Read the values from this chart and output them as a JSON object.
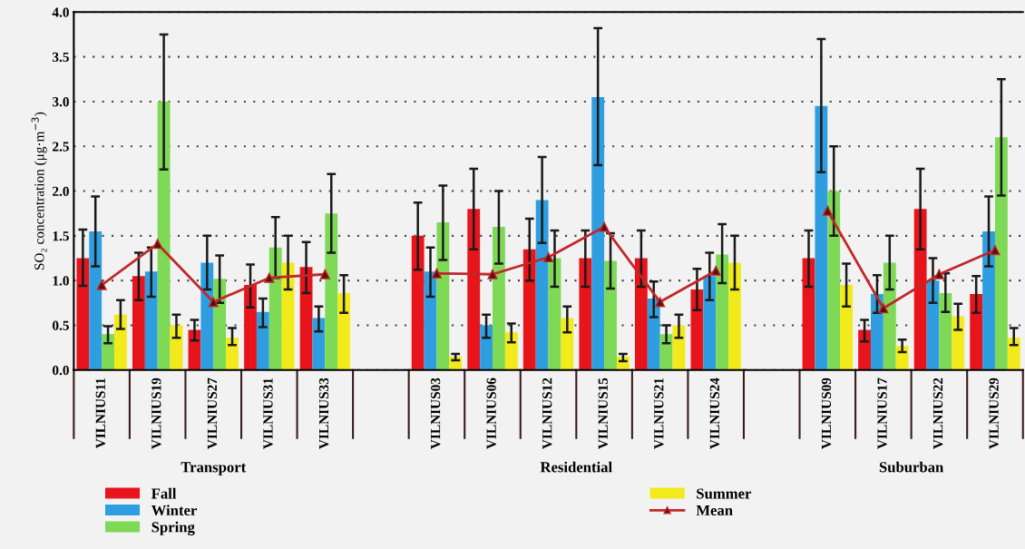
{
  "chart_data": {
    "type": "bar",
    "ylabel": "SO₂ concentration (μg·m$^{−3}$)",
    "categories": [
      "VILNIUS11",
      "VILNIUS19",
      "VILNIUS27",
      "VILNIUS31",
      "VILNIUS33",
      null,
      "VILNIUS03",
      "VILNIUS06",
      "VILNIUS12",
      "VILNIUS15",
      "VILNIUS21",
      "VILNIUS24",
      null,
      "VILNIUS09",
      "VILNIUS17",
      "VILNIUS22",
      "VILNIUS29"
    ],
    "annotations": [
      "Transport",
      "Residential",
      "Suburban"
    ],
    "series": [
      {
        "name": "Fall",
        "color": "#e8141b",
        "values": [
          1.25,
          1.05,
          0.45,
          0.95,
          1.15,
          null,
          1.5,
          1.8,
          1.35,
          1.25,
          1.25,
          0.9,
          null,
          1.25,
          0.45,
          1.8,
          0.85
        ],
        "errors": [
          [
            0.94,
            1.57
          ],
          [
            0.78,
            1.31
          ],
          [
            0.33,
            0.56
          ],
          [
            0.7,
            1.18
          ],
          [
            0.86,
            1.43
          ],
          null,
          [
            1.12,
            1.87
          ],
          [
            1.35,
            2.25
          ],
          [
            1.0,
            1.69
          ],
          [
            0.93,
            1.56
          ],
          [
            0.93,
            1.56
          ],
          [
            0.67,
            1.13
          ],
          null,
          [
            0.93,
            1.56
          ],
          [
            0.32,
            0.56
          ],
          [
            1.35,
            2.25
          ],
          [
            0.64,
            1.05
          ]
        ]
      },
      {
        "name": "Winter",
        "color": "#2f9ee0",
        "values": [
          1.55,
          1.1,
          1.2,
          0.65,
          0.58,
          null,
          1.1,
          0.5,
          1.9,
          3.05,
          0.8,
          1.05,
          null,
          2.95,
          0.85,
          1.0,
          1.55
        ],
        "errors": [
          [
            1.16,
            1.94
          ],
          [
            0.82,
            1.37
          ],
          [
            0.9,
            1.5
          ],
          [
            0.48,
            0.8
          ],
          [
            0.43,
            0.71
          ],
          null,
          [
            0.82,
            1.37
          ],
          [
            0.36,
            0.62
          ],
          [
            1.42,
            2.38
          ],
          [
            2.29,
            3.82
          ],
          [
            0.59,
            0.99
          ],
          [
            0.78,
            1.31
          ],
          null,
          [
            2.21,
            3.7
          ],
          [
            0.64,
            1.06
          ],
          [
            0.75,
            1.25
          ],
          [
            1.16,
            1.94
          ]
        ]
      },
      {
        "name": "Spring",
        "color": "#7ed957",
        "values": [
          0.4,
          3.0,
          1.02,
          1.37,
          1.75,
          null,
          1.65,
          1.6,
          1.25,
          1.22,
          0.4,
          1.29,
          null,
          2.0,
          1.2,
          0.86,
          2.6
        ],
        "errors": [
          [
            0.3,
            0.49
          ],
          [
            2.24,
            3.75
          ],
          [
            0.75,
            1.28
          ],
          [
            1.03,
            1.71
          ],
          [
            1.31,
            2.19
          ],
          null,
          [
            1.23,
            2.06
          ],
          [
            1.19,
            2.0
          ],
          [
            0.93,
            1.56
          ],
          [
            0.91,
            1.53
          ],
          [
            0.3,
            0.5
          ],
          [
            0.97,
            1.63
          ],
          null,
          [
            1.5,
            2.5
          ],
          [
            0.9,
            1.5
          ],
          [
            0.65,
            1.08
          ],
          [
            1.95,
            3.25
          ]
        ]
      },
      {
        "name": "Summer",
        "color": "#f2ea1a",
        "values": [
          0.62,
          0.5,
          0.36,
          1.2,
          0.86,
          null,
          0.15,
          0.42,
          0.58,
          0.15,
          0.5,
          1.2,
          null,
          0.95,
          0.27,
          0.6,
          0.36
        ],
        "errors": [
          [
            0.46,
            0.78
          ],
          [
            0.36,
            0.62
          ],
          [
            0.28,
            0.47
          ],
          [
            0.9,
            1.5
          ],
          [
            0.64,
            1.06
          ],
          null,
          [
            0.11,
            0.18
          ],
          [
            0.31,
            0.52
          ],
          [
            0.42,
            0.71
          ],
          [
            0.1,
            0.18
          ],
          [
            0.36,
            0.62
          ],
          [
            0.9,
            1.5
          ],
          null,
          [
            0.71,
            1.19
          ],
          [
            0.2,
            0.34
          ],
          [
            0.45,
            0.74
          ],
          [
            0.28,
            0.47
          ]
        ]
      },
      {
        "name": "Mean",
        "type": "line",
        "marker": "triangle",
        "color": "#c0282a",
        "values": [
          0.95,
          1.41,
          0.76,
          1.03,
          1.07,
          null,
          1.08,
          1.07,
          1.26,
          1.6,
          0.76,
          1.11,
          null,
          1.78,
          0.69,
          1.07,
          1.34
        ]
      }
    ],
    "ylim": [
      0,
      4.0
    ],
    "yticks": [
      {
        "value": 0,
        "label": "0.0"
      },
      {
        "value": 0.5,
        "label": "0.5"
      },
      {
        "value": 1.0,
        "label": "1.0"
      },
      {
        "value": 1.5,
        "label": "1.5"
      },
      {
        "value": 2.0,
        "label": "2.0"
      },
      {
        "value": 2.5,
        "label": "2.5"
      },
      {
        "value": 3.0,
        "label": "3.0"
      },
      {
        "value": 3.5,
        "label": "3.5"
      },
      {
        "value": 4.0,
        "label": "4.0"
      }
    ],
    "grid": "y",
    "legend": "bottom"
  }
}
